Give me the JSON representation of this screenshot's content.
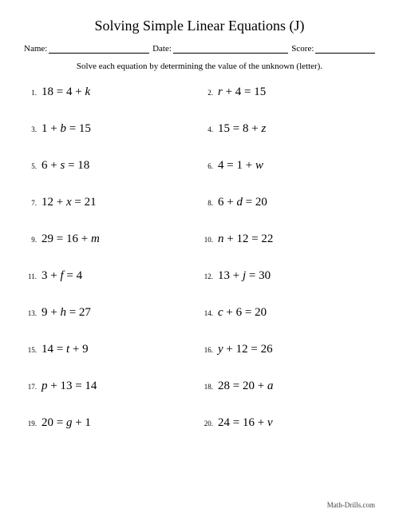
{
  "title": "Solving Simple Linear Equations (J)",
  "header": {
    "name_label": "Name:",
    "date_label": "Date:",
    "score_label": "Score:"
  },
  "instructions": "Solve each equation by determining the value of the unknown (letter).",
  "problems": [
    {
      "n": "1.",
      "lhs": "18",
      "op": " = ",
      "a": "4 + ",
      "var": "k",
      "b": ""
    },
    {
      "n": "2.",
      "lhs": "",
      "op": "",
      "a": "",
      "var": "r",
      "b": " + 4 = 15"
    },
    {
      "n": "3.",
      "lhs": "",
      "op": "",
      "a": "1 + ",
      "var": "b",
      "b": " = 15"
    },
    {
      "n": "4.",
      "lhs": "15",
      "op": " = ",
      "a": "8 + ",
      "var": "z",
      "b": ""
    },
    {
      "n": "5.",
      "lhs": "",
      "op": "",
      "a": "6 + ",
      "var": "s",
      "b": " = 18"
    },
    {
      "n": "6.",
      "lhs": "4",
      "op": " = ",
      "a": "1 + ",
      "var": "w",
      "b": ""
    },
    {
      "n": "7.",
      "lhs": "",
      "op": "",
      "a": "12 + ",
      "var": "x",
      "b": " = 21"
    },
    {
      "n": "8.",
      "lhs": "",
      "op": "",
      "a": "6 + ",
      "var": "d",
      "b": " = 20"
    },
    {
      "n": "9.",
      "lhs": "29",
      "op": " = ",
      "a": "16 + ",
      "var": "m",
      "b": ""
    },
    {
      "n": "10.",
      "lhs": "",
      "op": "",
      "a": "",
      "var": "n",
      "b": " + 12 = 22"
    },
    {
      "n": "11.",
      "lhs": "",
      "op": "",
      "a": "3 + ",
      "var": "f",
      "b": " = 4"
    },
    {
      "n": "12.",
      "lhs": "",
      "op": "",
      "a": "13 + ",
      "var": "j",
      "b": " = 30"
    },
    {
      "n": "13.",
      "lhs": "",
      "op": "",
      "a": "9 + ",
      "var": "h",
      "b": " = 27"
    },
    {
      "n": "14.",
      "lhs": "",
      "op": "",
      "a": "",
      "var": "c",
      "b": " + 6 = 20"
    },
    {
      "n": "15.",
      "lhs": "14",
      "op": " = ",
      "a": "",
      "var": "t",
      "b": " + 9"
    },
    {
      "n": "16.",
      "lhs": "",
      "op": "",
      "a": "",
      "var": "y",
      "b": " + 12 = 26"
    },
    {
      "n": "17.",
      "lhs": "",
      "op": "",
      "a": "",
      "var": "p",
      "b": " + 13 = 14"
    },
    {
      "n": "18.",
      "lhs": "28",
      "op": " = ",
      "a": "20 + ",
      "var": "a",
      "b": ""
    },
    {
      "n": "19.",
      "lhs": "20",
      "op": " = ",
      "a": "",
      "var": "g",
      "b": " + 1"
    },
    {
      "n": "20.",
      "lhs": "24",
      "op": " = ",
      "a": "16 + ",
      "var": "v",
      "b": ""
    }
  ],
  "footer": "Math-Drills.com"
}
